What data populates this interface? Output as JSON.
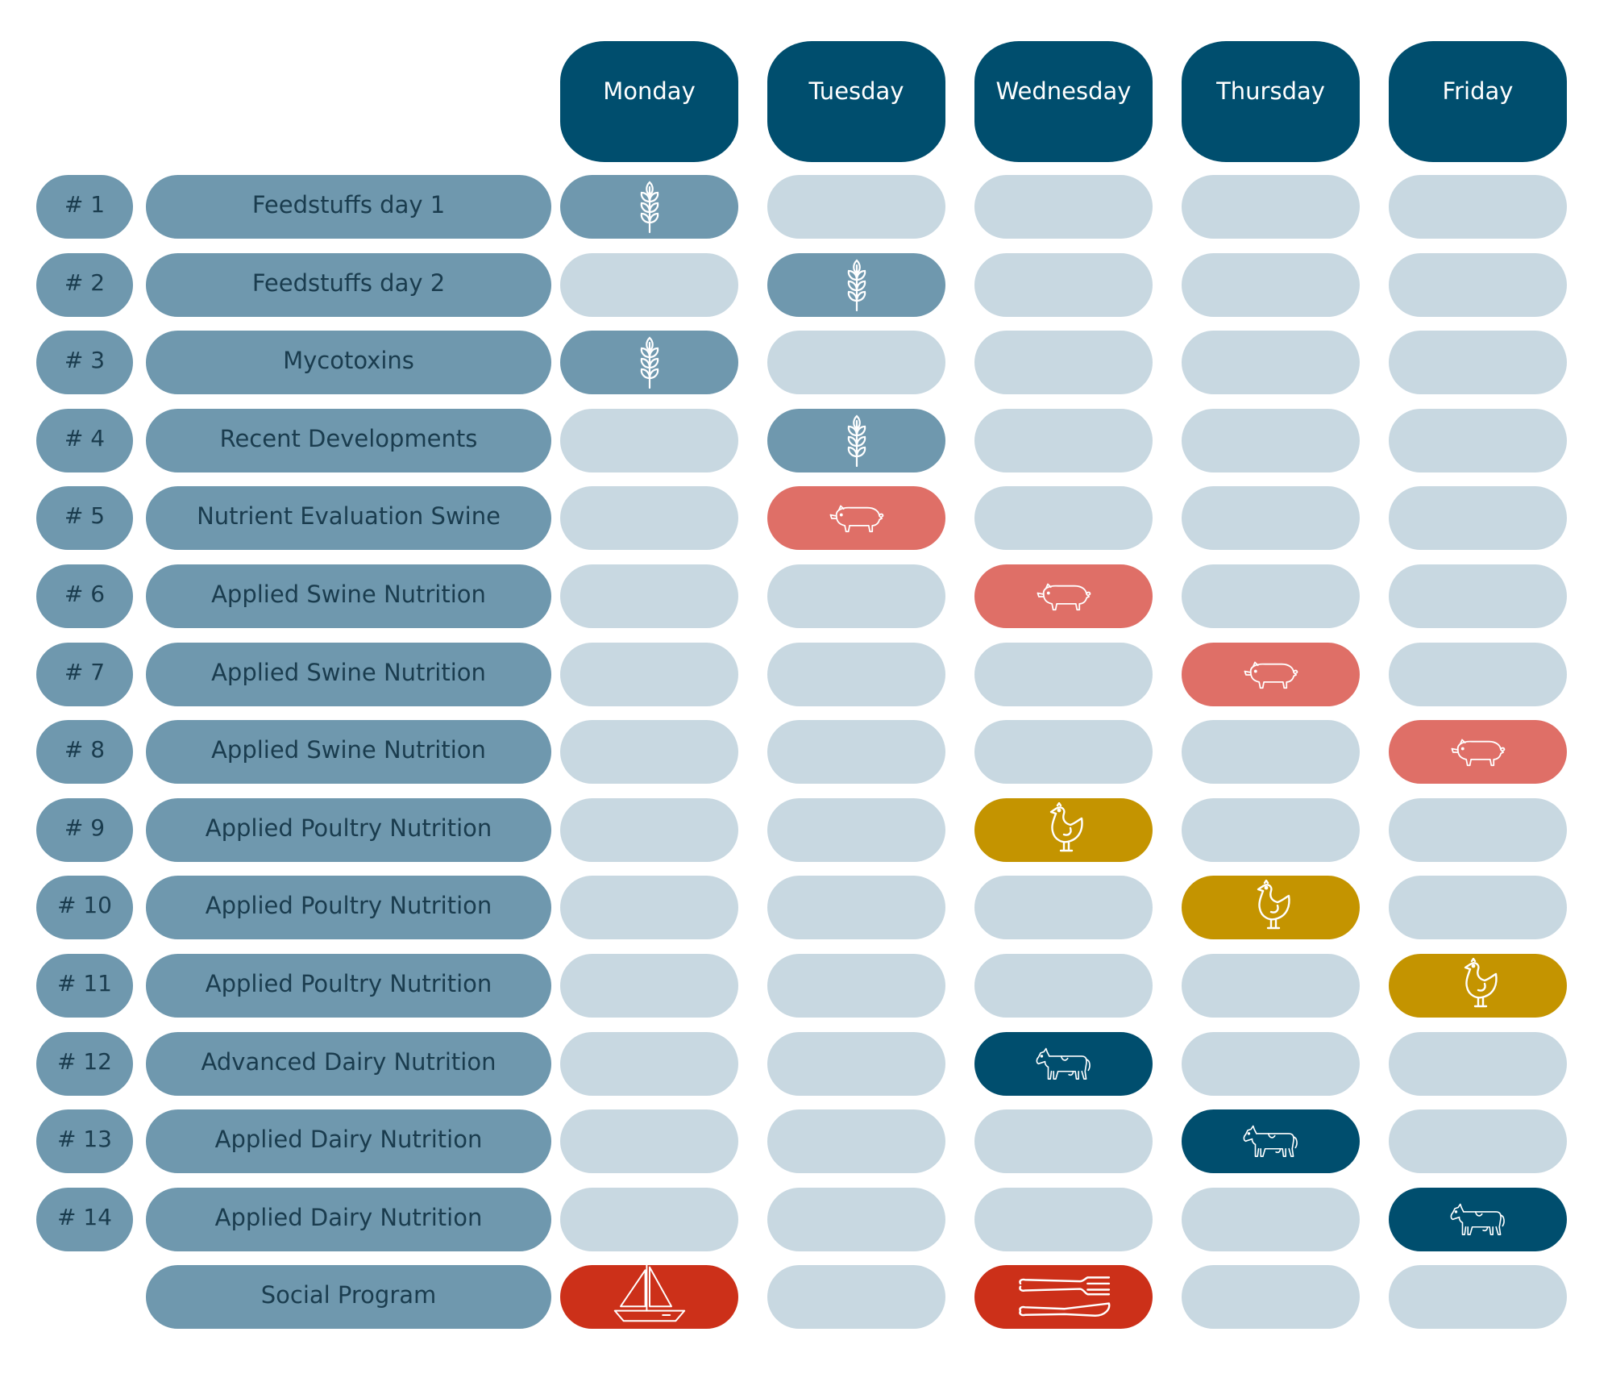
{
  "days": [
    "Monday",
    "Tuesday",
    "Wednesday",
    "Thursday",
    "Friday"
  ],
  "rows": [
    {
      "number": "# 1",
      "title": "Feedstuffs day 1",
      "cells": [
        "grain",
        null,
        null,
        null,
        null
      ]
    },
    {
      "number": "# 2",
      "title": "Feedstuffs day 2",
      "cells": [
        null,
        "grain",
        null,
        null,
        null
      ]
    },
    {
      "number": "# 3",
      "title": "Mycotoxins",
      "cells": [
        "grain",
        null,
        null,
        null,
        null
      ]
    },
    {
      "number": "# 4",
      "title": "Recent Developments",
      "cells": [
        null,
        "grain",
        null,
        null,
        null
      ]
    },
    {
      "number": "# 5",
      "title": "Nutrient Evaluation Swine",
      "cells": [
        null,
        "pig",
        null,
        null,
        null
      ]
    },
    {
      "number": "# 6",
      "title": "Applied Swine Nutrition",
      "cells": [
        null,
        null,
        "pig",
        null,
        null
      ]
    },
    {
      "number": "# 7",
      "title": "Applied Swine Nutrition",
      "cells": [
        null,
        null,
        null,
        "pig",
        null
      ]
    },
    {
      "number": "# 8",
      "title": "Applied Swine Nutrition",
      "cells": [
        null,
        null,
        null,
        null,
        "pig"
      ]
    },
    {
      "number": "# 9",
      "title": "Applied Poultry Nutrition",
      "cells": [
        null,
        null,
        "chicken",
        null,
        null
      ]
    },
    {
      "number": "# 10",
      "title": "Applied Poultry Nutrition",
      "cells": [
        null,
        null,
        null,
        "chicken",
        null
      ]
    },
    {
      "number": "# 11",
      "title": "Applied Poultry Nutrition",
      "cells": [
        null,
        null,
        null,
        null,
        "chicken"
      ]
    },
    {
      "number": "# 12",
      "title": "Advanced Dairy Nutrition",
      "cells": [
        null,
        null,
        "cow",
        null,
        null
      ]
    },
    {
      "number": "# 13",
      "title": "Applied Dairy Nutrition",
      "cells": [
        null,
        null,
        null,
        "cow",
        null
      ]
    },
    {
      "number": "# 14",
      "title": "Applied Dairy Nutrition",
      "cells": [
        null,
        null,
        null,
        null,
        "cow"
      ]
    },
    {
      "number": "",
      "title": "Social Program",
      "cells": [
        "boat",
        null,
        "cutlery",
        null,
        null
      ]
    }
  ],
  "colors": {
    "day_header": "#004e6e",
    "row_label": "#6f98ae",
    "empty_cell": "#c8d8e1",
    "grain": "#6f98ae",
    "pig": "#df6f67",
    "chicken": "#c49400",
    "cow": "#004e6e",
    "boat": "#cc3019",
    "cutlery": "#cc3019"
  },
  "icons": {
    "grain": "wheat-icon",
    "pig": "pig-icon",
    "chicken": "chicken-icon",
    "cow": "cow-icon",
    "boat": "sailboat-icon",
    "cutlery": "fork-knife-icon"
  }
}
